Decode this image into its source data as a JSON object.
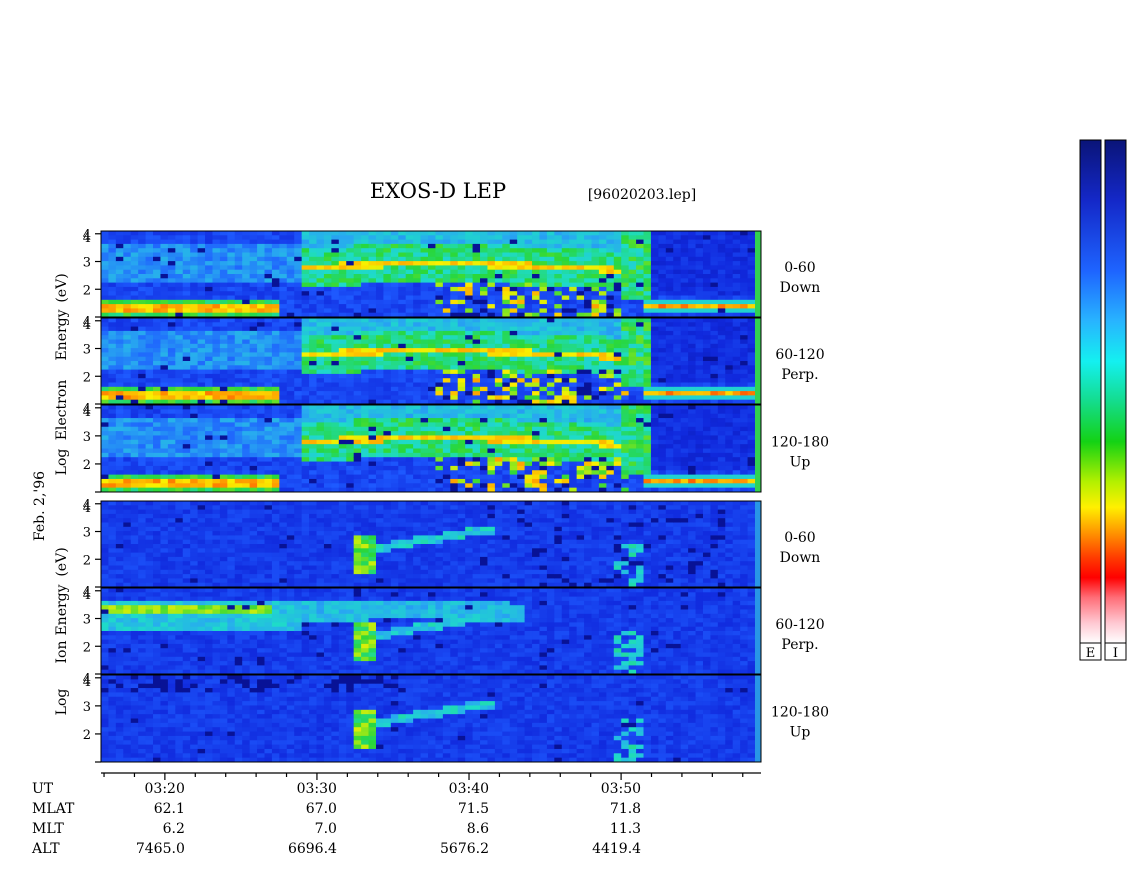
{
  "title": "EXOS-D LEP",
  "file_label": "[96020203.lep]",
  "date_label": "Feb. 2,'96",
  "colorbar": {
    "e_label": "E",
    "i_label": "I"
  },
  "colors": {
    "background": "#0a1ec8",
    "low": "#1e46ff",
    "mid": "#28c8e6",
    "green": "#50e650",
    "yellow": "#f0f03c",
    "orange": "#ff9628",
    "red": "#ff2828"
  },
  "chart_data": [
    {
      "type": "heatmap",
      "group": "electron",
      "group_ylabel": [
        "Log",
        "Electron",
        "Energy",
        "(eV)"
      ],
      "panels": [
        {
          "angle": "0-60",
          "direction": "Down"
        },
        {
          "angle": "60-120",
          "direction": "Perp."
        },
        {
          "angle": "120-180",
          "direction": "Up"
        }
      ],
      "yticks": [
        1,
        2,
        3,
        4
      ],
      "ytick_labels": [
        "2",
        "3",
        "4"
      ],
      "ylim": [
        1,
        4.1
      ],
      "xlim_minutes": [
        15.8,
        59.2
      ],
      "features": [
        {
          "desc": "low-energy band",
          "ut_start": "03:16",
          "ut_end": "03:27",
          "log_e": 1.3,
          "level": "yellow-orange"
        },
        {
          "desc": "rising arc",
          "ut_start": "03:31",
          "ut_end": "03:45",
          "log_e": [
            2.4,
            2.9
          ],
          "level": "yellow"
        },
        {
          "desc": "low-energy band",
          "ut_start": "03:52",
          "ut_end": "03:59",
          "log_e": 1.4,
          "level": "yellow-orange"
        }
      ]
    },
    {
      "type": "heatmap",
      "group": "ion",
      "group_ylabel": [
        "Log",
        "Ion",
        "Energy",
        "(eV)"
      ],
      "panels": [
        {
          "angle": "0-60",
          "direction": "Down"
        },
        {
          "angle": "60-120",
          "direction": "Perp."
        },
        {
          "angle": "120-180",
          "direction": "Up"
        }
      ],
      "yticks": [
        1,
        2,
        3,
        4
      ],
      "ytick_labels": [
        "2",
        "3",
        "4"
      ],
      "ylim": [
        1,
        4.1
      ],
      "xlim_minutes": [
        15.8,
        59.2
      ],
      "features": [
        {
          "desc": "high-energy band",
          "ut_start": "03:16",
          "ut_end": "03:27",
          "log_e": 3.3,
          "level": "green"
        },
        {
          "desc": "arc",
          "ut_start": "03:33",
          "ut_end": "03:40",
          "log_e": [
            2.2,
            3.0
          ],
          "level": "cyan-green"
        },
        {
          "desc": "spike",
          "ut": "03:33",
          "log_e": [
            1.5,
            2.4
          ],
          "level": "green-yellow"
        }
      ]
    }
  ],
  "axis": {
    "ticks": [
      {
        "minute": 20,
        "label": "03:20"
      },
      {
        "minute": 30,
        "label": "03:30"
      },
      {
        "minute": 40,
        "label": "03:40"
      },
      {
        "minute": 50,
        "label": "03:50"
      }
    ],
    "rows": [
      {
        "label": "UT",
        "key": "ut"
      },
      {
        "label": "MLAT",
        "values": [
          "62.1",
          "67.0",
          "71.5",
          "71.8"
        ]
      },
      {
        "label": "MLT",
        "values": [
          "6.2",
          "7.0",
          "8.6",
          "11.3"
        ]
      },
      {
        "label": "ALT",
        "values": [
          "7465.0",
          "6696.4",
          "5676.2",
          "4419.4"
        ]
      }
    ]
  }
}
